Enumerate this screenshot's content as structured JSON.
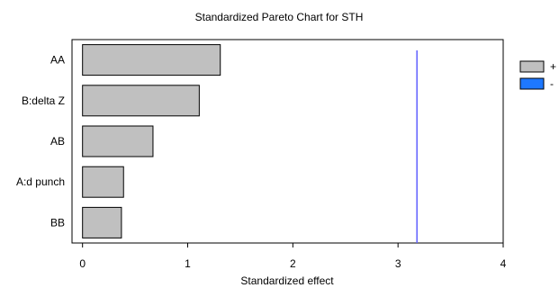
{
  "chart_data": {
    "type": "bar",
    "orientation": "horizontal",
    "title": "Standardized Pareto Chart for STH",
    "xlabel": "Standardized effect",
    "ylabel": "",
    "categories": [
      "AA",
      "B:delta Z",
      "AB",
      "A:d punch",
      "BB"
    ],
    "values": [
      1.31,
      1.11,
      0.67,
      0.39,
      0.37
    ],
    "signs": [
      "+",
      "+",
      "+",
      "+",
      "+"
    ],
    "xlim": [
      -0.1,
      4.0
    ],
    "xticks": [
      0,
      1,
      2,
      3,
      4
    ],
    "reference_line": 3.18,
    "legend": {
      "placement": "right",
      "entries": [
        {
          "label": "+",
          "color": "#c0c0c0"
        },
        {
          "label": "-",
          "color": "#1e78ff"
        }
      ]
    },
    "colors": {
      "positive_bar": "#c0c0c0",
      "negative_bar": "#1e78ff",
      "reference_line": "#6060ff"
    },
    "grid": false
  }
}
